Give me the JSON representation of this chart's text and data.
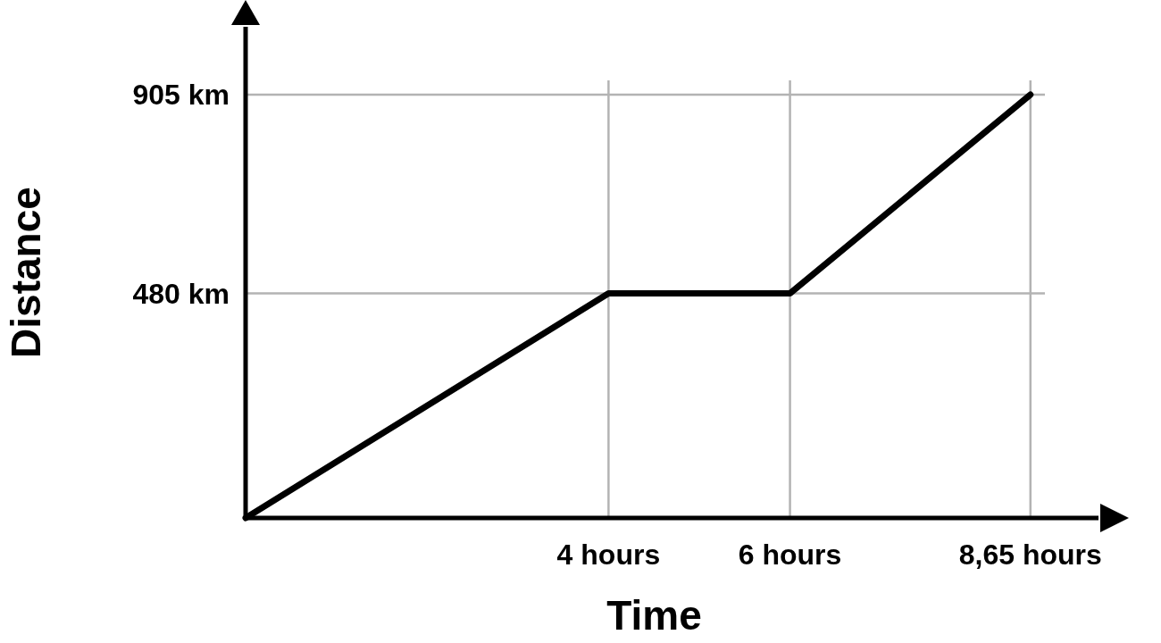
{
  "chart_data": {
    "type": "line",
    "xlabel": "Time",
    "ylabel": "Distance",
    "x": [
      0,
      4,
      6,
      8.65
    ],
    "series": [
      {
        "color": "#000000",
        "values": [
          0,
          480,
          480,
          905
        ]
      }
    ],
    "xlim": [
      0,
      9.4
    ],
    "ylim": [
      0,
      1050
    ],
    "xticks": [
      {
        "value": 4,
        "label": "4 hours"
      },
      {
        "value": 6,
        "label": "6 hours"
      },
      {
        "value": 8.65,
        "label": "8,65 hours"
      }
    ],
    "yticks": [
      {
        "value": 480,
        "label": "480 km"
      },
      {
        "value": 905,
        "label": "905 km"
      }
    ],
    "grid": true,
    "marker": "none",
    "line_style": "solid"
  }
}
